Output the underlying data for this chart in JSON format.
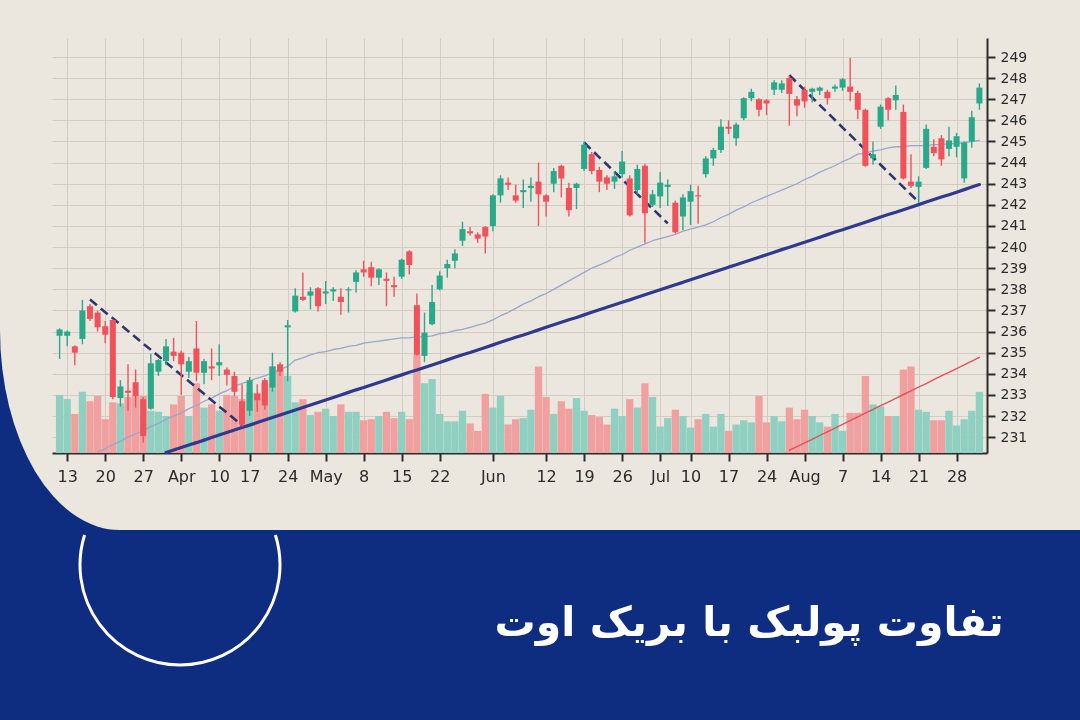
{
  "chart_data": {
    "type": "candlestick",
    "title": "تفاوت پولبک با بریک اوت",
    "categories": [
      null,
      "13",
      null,
      null,
      null,
      null,
      "20",
      null,
      null,
      null,
      null,
      "27",
      null,
      null,
      null,
      null,
      "Apr",
      null,
      null,
      null,
      null,
      "10",
      null,
      null,
      null,
      "17",
      null,
      null,
      null,
      null,
      "24",
      null,
      null,
      null,
      null,
      "May",
      null,
      null,
      null,
      null,
      "8",
      null,
      null,
      null,
      null,
      "15",
      null,
      null,
      null,
      null,
      "22",
      null,
      null,
      null,
      null,
      null,
      null,
      "Jun",
      null,
      null,
      null,
      null,
      null,
      null,
      "12",
      null,
      null,
      null,
      null,
      "19",
      null,
      null,
      null,
      null,
      "26",
      null,
      null,
      null,
      null,
      "Jul",
      null,
      null,
      null,
      "10",
      null,
      null,
      null,
      null,
      "17",
      null,
      null,
      null,
      null,
      "24",
      null,
      null,
      null,
      null,
      "Aug",
      null,
      null,
      null,
      null,
      "7",
      null,
      null,
      null,
      null,
      "14",
      null,
      null,
      null,
      null,
      "21",
      null,
      null,
      null,
      null,
      "28",
      null,
      null,
      null
    ],
    "ohlc": [
      [
        235.8,
        236.15,
        234.7,
        236.1
      ],
      [
        235.8,
        236.05,
        235.3,
        236.0
      ],
      [
        235.3,
        235.35,
        234.4,
        235.0
      ],
      [
        235.65,
        237.5,
        235.4,
        237.0
      ],
      [
        237.2,
        237.3,
        236.5,
        236.6
      ],
      [
        236.9,
        237.0,
        236.0,
        236.2
      ],
      [
        236.25,
        236.5,
        235.45,
        235.85
      ],
      [
        236.55,
        236.6,
        232.8,
        232.9
      ],
      [
        232.85,
        233.7,
        232.45,
        233.4
      ],
      [
        233.2,
        234.45,
        232.25,
        233.1
      ],
      [
        233.6,
        234.2,
        232.4,
        232.95
      ],
      [
        232.8,
        232.9,
        230.75,
        231.05
      ],
      [
        232.35,
        234.95,
        232.3,
        234.5
      ],
      [
        234.1,
        234.7,
        233.9,
        234.65
      ],
      [
        234.6,
        235.65,
        234.4,
        235.3
      ],
      [
        235.05,
        235.7,
        234.6,
        234.85
      ],
      [
        235.0,
        235.1,
        233.0,
        234.45
      ],
      [
        234.1,
        234.8,
        233.8,
        234.6
      ],
      [
        235.2,
        236.5,
        233.65,
        234.05
      ],
      [
        234.05,
        234.7,
        233.5,
        234.6
      ],
      [
        234.35,
        235.2,
        233.7,
        234.25
      ],
      [
        234.4,
        235.4,
        233.9,
        234.55
      ],
      [
        234.2,
        234.3,
        233.45,
        233.95
      ],
      [
        233.9,
        234.1,
        232.95,
        233.15
      ],
      [
        232.7,
        233.5,
        231.5,
        231.6
      ],
      [
        232.25,
        233.85,
        232.0,
        233.7
      ],
      [
        233.05,
        233.5,
        232.2,
        232.75
      ],
      [
        233.7,
        233.8,
        232.3,
        232.5
      ],
      [
        233.35,
        235.0,
        233.15,
        234.35
      ],
      [
        234.45,
        234.55,
        233.9,
        234.1
      ],
      [
        236.2,
        236.55,
        233.65,
        236.3
      ],
      [
        236.95,
        238.05,
        236.9,
        237.7
      ],
      [
        237.65,
        238.8,
        237.45,
        237.5
      ],
      [
        237.7,
        238.1,
        237.05,
        237.9
      ],
      [
        238.05,
        238.1,
        236.95,
        237.2
      ],
      [
        237.8,
        238.4,
        237.3,
        237.9
      ],
      [
        237.9,
        238.1,
        237.45,
        238.0
      ],
      [
        237.65,
        238.05,
        236.8,
        237.4
      ],
      [
        237.95,
        238.1,
        236.9,
        238.0
      ],
      [
        238.35,
        238.9,
        237.85,
        238.8
      ],
      [
        238.95,
        239.35,
        238.6,
        238.8
      ],
      [
        239.05,
        239.3,
        238.15,
        238.55
      ],
      [
        238.55,
        239.0,
        238.2,
        238.95
      ],
      [
        238.5,
        238.8,
        237.2,
        238.4
      ],
      [
        238.2,
        238.6,
        237.65,
        238.1
      ],
      [
        238.6,
        239.45,
        238.5,
        239.4
      ],
      [
        239.8,
        239.85,
        238.7,
        239.15
      ],
      [
        237.25,
        237.8,
        234.85,
        234.9
      ],
      [
        234.85,
        236.9,
        234.55,
        235.95
      ],
      [
        236.35,
        238.2,
        236.3,
        237.4
      ],
      [
        238.0,
        238.85,
        237.95,
        238.65
      ],
      [
        239.0,
        239.4,
        238.55,
        239.2
      ],
      [
        239.35,
        239.9,
        239.0,
        239.7
      ],
      [
        240.3,
        241.2,
        240.05,
        240.85
      ],
      [
        240.75,
        240.95,
        240.55,
        240.65
      ],
      [
        240.6,
        240.7,
        240.2,
        240.4
      ],
      [
        240.95,
        241.0,
        239.7,
        240.5
      ],
      [
        241.0,
        242.5,
        240.75,
        242.45
      ],
      [
        242.45,
        243.4,
        242.1,
        243.25
      ],
      [
        243.05,
        243.3,
        242.7,
        242.95
      ],
      [
        242.45,
        242.95,
        242.1,
        242.2
      ],
      [
        242.6,
        243.2,
        241.85,
        242.7
      ],
      [
        242.8,
        243.3,
        242.15,
        242.9
      ],
      [
        243.1,
        244.0,
        241.0,
        242.5
      ],
      [
        242.45,
        242.5,
        241.45,
        242.15
      ],
      [
        243.0,
        243.75,
        242.6,
        243.6
      ],
      [
        243.85,
        243.9,
        242.35,
        243.25
      ],
      [
        242.8,
        243.05,
        241.45,
        241.75
      ],
      [
        242.8,
        243.05,
        241.8,
        243.0
      ],
      [
        243.7,
        245.0,
        243.6,
        244.85
      ],
      [
        244.4,
        244.5,
        243.45,
        243.6
      ],
      [
        243.65,
        243.8,
        242.6,
        243.1
      ],
      [
        243.3,
        243.4,
        242.7,
        243.0
      ],
      [
        243.1,
        243.6,
        242.75,
        243.35
      ],
      [
        243.45,
        244.55,
        243.3,
        244.05
      ],
      [
        243.25,
        243.4,
        241.45,
        241.5
      ],
      [
        242.7,
        243.9,
        242.5,
        243.7
      ],
      [
        243.85,
        243.95,
        240.2,
        241.6
      ],
      [
        242.0,
        242.7,
        241.9,
        242.5
      ],
      [
        242.4,
        243.55,
        241.85,
        243.05
      ],
      [
        242.85,
        243.2,
        241.95,
        242.95
      ],
      [
        242.1,
        242.2,
        240.65,
        240.7
      ],
      [
        241.45,
        242.5,
        240.8,
        242.35
      ],
      [
        242.15,
        242.95,
        241.05,
        242.65
      ],
      [
        242.45,
        242.9,
        241.1,
        242.4
      ],
      [
        243.45,
        244.3,
        243.3,
        244.2
      ],
      [
        244.2,
        244.7,
        243.85,
        244.6
      ],
      [
        244.6,
        246.05,
        244.45,
        245.7
      ],
      [
        245.7,
        246.0,
        245.35,
        245.6
      ],
      [
        245.15,
        245.9,
        244.8,
        245.8
      ],
      [
        246.1,
        247.1,
        246.0,
        247.05
      ],
      [
        247.05,
        247.5,
        246.9,
        247.35
      ],
      [
        247.0,
        247.05,
        246.2,
        246.5
      ],
      [
        246.95,
        247.0,
        246.25,
        246.8
      ],
      [
        247.45,
        247.9,
        247.2,
        247.8
      ],
      [
        247.45,
        247.9,
        247.3,
        247.75
      ],
      [
        248.0,
        248.1,
        245.75,
        247.25
      ],
      [
        247.0,
        247.15,
        246.2,
        246.7
      ],
      [
        247.45,
        247.6,
        246.6,
        246.9
      ],
      [
        247.35,
        247.55,
        246.85,
        247.5
      ],
      [
        247.4,
        247.6,
        247.2,
        247.55
      ],
      [
        247.35,
        247.45,
        246.75,
        247.05
      ],
      [
        247.5,
        247.7,
        247.35,
        247.6
      ],
      [
        247.55,
        248.0,
        247.4,
        247.95
      ],
      [
        247.6,
        248.95,
        246.9,
        247.35
      ],
      [
        247.3,
        247.4,
        246.05,
        246.5
      ],
      [
        246.5,
        246.55,
        243.8,
        243.85
      ],
      [
        244.2,
        245.0,
        243.9,
        244.4
      ],
      [
        245.7,
        246.75,
        245.6,
        246.65
      ],
      [
        247.05,
        247.1,
        246.0,
        246.5
      ],
      [
        246.95,
        247.65,
        246.5,
        247.2
      ],
      [
        246.4,
        246.75,
        243.2,
        243.25
      ],
      [
        243.1,
        244.4,
        242.8,
        242.9
      ],
      [
        242.85,
        243.35,
        242.1,
        243.1
      ],
      [
        243.75,
        245.8,
        243.7,
        245.6
      ],
      [
        244.75,
        245.1,
        244.3,
        244.45
      ],
      [
        245.15,
        245.3,
        243.85,
        244.15
      ],
      [
        244.65,
        245.7,
        244.3,
        245.05
      ],
      [
        244.75,
        245.4,
        244.25,
        245.25
      ],
      [
        243.25,
        245.0,
        243.05,
        244.95
      ],
      [
        245.0,
        246.45,
        244.7,
        246.15
      ],
      [
        246.8,
        247.75,
        246.5,
        247.55
      ]
    ],
    "colors": [
      "#2aa88a",
      "#2aa88a",
      "#ef525b",
      "#2aa88a",
      "#ef525b",
      "#ef525b",
      "#ef525b",
      "#ef525b",
      "#2aa88a",
      "#ef525b",
      "#ef525b",
      "#ef525b",
      "#2aa88a",
      "#2aa88a",
      "#2aa88a",
      "#ef525b",
      "#ef525b",
      "#2aa88a",
      "#ef525b",
      "#2aa88a",
      "#ef525b",
      "#2aa88a",
      "#ef525b",
      "#ef525b",
      "#ef525b",
      "#2aa88a",
      "#ef525b",
      "#ef525b",
      "#2aa88a",
      "#ef525b",
      "#2aa88a",
      "#2aa88a",
      "#ef525b",
      "#2aa88a",
      "#ef525b",
      "#2aa88a",
      "#2aa88a",
      "#ef525b",
      "#2aa88a",
      "#2aa88a",
      "#ef525b",
      "#ef525b",
      "#2aa88a",
      "#ef525b",
      "#ef525b",
      "#2aa88a",
      "#ef525b",
      "#ef525b",
      "#2aa88a",
      "#2aa88a",
      "#2aa88a",
      "#2aa88a",
      "#2aa88a",
      "#2aa88a",
      "#ef525b",
      "#ef525b",
      "#ef525b",
      "#2aa88a",
      "#2aa88a",
      "#ef525b",
      "#ef525b",
      "#2aa88a",
      "#2aa88a",
      "#ef525b",
      "#ef525b",
      "#2aa88a",
      "#ef525b",
      "#ef525b",
      "#2aa88a",
      "#2aa88a",
      "#ef525b",
      "#ef525b",
      "#ef525b",
      "#2aa88a",
      "#2aa88a",
      "#ef525b",
      "#2aa88a",
      "#ef525b",
      "#2aa88a",
      "#2aa88a",
      "#2aa88a",
      "#ef525b",
      "#2aa88a",
      "#2aa88a",
      "#ef525b",
      "#2aa88a",
      "#2aa88a",
      "#2aa88a",
      "#ef525b",
      "#2aa88a",
      "#2aa88a",
      "#2aa88a",
      "#ef525b",
      "#ef525b",
      "#2aa88a",
      "#2aa88a",
      "#ef525b",
      "#ef525b",
      "#ef525b",
      "#2aa88a",
      "#2aa88a",
      "#ef525b",
      "#2aa88a",
      "#2aa88a",
      "#ef525b",
      "#ef525b",
      "#ef525b",
      "#2aa88a",
      "#2aa88a",
      "#ef525b",
      "#2aa88a",
      "#ef525b",
      "#ef525b",
      "#2aa88a",
      "#2aa88a",
      "#ef525b",
      "#ef525b",
      "#2aa88a",
      "#2aa88a",
      "#2aa88a",
      "#2aa88a",
      "#2aa88a"
    ],
    "series": [
      {
        "type": "bar",
        "values": [
          233.0,
          232.8,
          232.1,
          233.15,
          232.7,
          232.95,
          231.85,
          232.65,
          232.6,
          232.9,
          232.95,
          232.95,
          232.25,
          232.2,
          232.0,
          232.55,
          232.95,
          232.0,
          233.55,
          232.4,
          232.55,
          232.25,
          233.0,
          232.95,
          232.8,
          233.1,
          233.1,
          233.55,
          234.35,
          234.2,
          233.9,
          232.65,
          232.8,
          232.05,
          232.2,
          232.35,
          232.0,
          232.55,
          232.2,
          232.2,
          231.8,
          231.85,
          232.0,
          232.2,
          231.9,
          232.2,
          231.85,
          234.9,
          233.55,
          233.75,
          232.1,
          231.75,
          231.75,
          232.25,
          231.65,
          231.3,
          233.05,
          232.4,
          232.95,
          231.6,
          231.85,
          231.9,
          232.3,
          234.35,
          232.9,
          232.1,
          232.7,
          232.35,
          232.85,
          232.25,
          232.05,
          231.95,
          231.6,
          232.35,
          232.0,
          232.8,
          232.4,
          233.55,
          232.9,
          231.5,
          231.9,
          232.3,
          232.0,
          231.45,
          231.85,
          232.1,
          231.5,
          232.1,
          231.3,
          231.6,
          231.8,
          231.7,
          232.95,
          231.7,
          232.0,
          231.75,
          232.4,
          231.85,
          232.3,
          232.0,
          231.7,
          231.5,
          232.1,
          231.3,
          232.15,
          232.15,
          233.9,
          232.55,
          232.45,
          232.0,
          232.0,
          234.2,
          234.35,
          232.3,
          232.2,
          231.8,
          231.8,
          232.25,
          231.55,
          231.85,
          232.25,
          233.15
        ],
        "colors": [
          "#8fd0c0",
          "#8fd0c0",
          "#f1a0a0",
          "#8fd0c0",
          "#f1a0a0",
          "#f1a0a0",
          "#f1a0a0",
          "#f1a0a0",
          "#8fd0c0",
          "#f1a0a0",
          "#f1a0a0",
          "#f1a0a0",
          "#8fd0c0",
          "#8fd0c0",
          "#8fd0c0",
          "#f1a0a0",
          "#f1a0a0",
          "#8fd0c0",
          "#f1a0a0",
          "#8fd0c0",
          "#f1a0a0",
          "#8fd0c0",
          "#f1a0a0",
          "#f1a0a0",
          "#f1a0a0",
          "#8fd0c0",
          "#f1a0a0",
          "#f1a0a0",
          "#8fd0c0",
          "#f1a0a0",
          "#8fd0c0",
          "#8fd0c0",
          "#f1a0a0",
          "#8fd0c0",
          "#f1a0a0",
          "#8fd0c0",
          "#8fd0c0",
          "#f1a0a0",
          "#8fd0c0",
          "#8fd0c0",
          "#f1a0a0",
          "#f1a0a0",
          "#8fd0c0",
          "#f1a0a0",
          "#f1a0a0",
          "#8fd0c0",
          "#f1a0a0",
          "#f1a0a0",
          "#8fd0c0",
          "#8fd0c0",
          "#8fd0c0",
          "#8fd0c0",
          "#8fd0c0",
          "#8fd0c0",
          "#f1a0a0",
          "#f1a0a0",
          "#f1a0a0",
          "#8fd0c0",
          "#8fd0c0",
          "#f1a0a0",
          "#f1a0a0",
          "#8fd0c0",
          "#8fd0c0",
          "#f1a0a0",
          "#f1a0a0",
          "#8fd0c0",
          "#f1a0a0",
          "#f1a0a0",
          "#8fd0c0",
          "#8fd0c0",
          "#f1a0a0",
          "#f1a0a0",
          "#f1a0a0",
          "#8fd0c0",
          "#8fd0c0",
          "#f1a0a0",
          "#8fd0c0",
          "#f1a0a0",
          "#8fd0c0",
          "#8fd0c0",
          "#8fd0c0",
          "#f1a0a0",
          "#8fd0c0",
          "#8fd0c0",
          "#f1a0a0",
          "#8fd0c0",
          "#8fd0c0",
          "#8fd0c0",
          "#f1a0a0",
          "#8fd0c0",
          "#8fd0c0",
          "#8fd0c0",
          "#f1a0a0",
          "#f1a0a0",
          "#8fd0c0",
          "#8fd0c0",
          "#f1a0a0",
          "#f1a0a0",
          "#f1a0a0",
          "#8fd0c0",
          "#8fd0c0",
          "#f1a0a0",
          "#8fd0c0",
          "#8fd0c0",
          "#f1a0a0",
          "#f1a0a0",
          "#f1a0a0",
          "#8fd0c0",
          "#8fd0c0",
          "#f1a0a0",
          "#8fd0c0",
          "#f1a0a0",
          "#f1a0a0",
          "#8fd0c0",
          "#8fd0c0",
          "#f1a0a0",
          "#f1a0a0",
          "#8fd0c0",
          "#8fd0c0",
          "#8fd0c0",
          "#8fd0c0",
          "#8fd0c0"
        ]
      },
      {
        "type": "line",
        "color": "#9aa6cb",
        "values": [
          null,
          null,
          null,
          null,
          null,
          230.3,
          230.45,
          230.65,
          230.8,
          231.0,
          231.15,
          231.3,
          231.5,
          231.65,
          231.85,
          232.0,
          232.15,
          232.35,
          232.5,
          232.7,
          232.85,
          233.05,
          233.2,
          233.4,
          233.55,
          233.65,
          233.8,
          233.9,
          234.05,
          234.2,
          234.35,
          234.65,
          234.75,
          234.9,
          235.0,
          235.05,
          235.15,
          235.2,
          235.3,
          235.35,
          235.45,
          235.5,
          235.55,
          235.6,
          235.65,
          235.7,
          235.7,
          235.75,
          235.75,
          235.8,
          235.9,
          235.95,
          236.05,
          236.1,
          236.2,
          236.3,
          236.4,
          236.55,
          236.75,
          236.9,
          237.1,
          237.3,
          237.45,
          237.65,
          237.8,
          238.0,
          238.2,
          238.4,
          238.6,
          238.8,
          239.0,
          239.15,
          239.3,
          239.5,
          239.65,
          239.85,
          240.0,
          240.15,
          240.3,
          240.4,
          240.5,
          240.6,
          240.75,
          240.85,
          240.95,
          241.05,
          241.2,
          241.4,
          241.55,
          241.75,
          241.9,
          242.1,
          242.25,
          242.4,
          242.55,
          242.7,
          242.85,
          243.0,
          243.2,
          243.35,
          243.55,
          243.7,
          243.85,
          244.05,
          244.2,
          244.4,
          244.45,
          244.55,
          244.6,
          244.7,
          244.75,
          244.75,
          244.8,
          244.8,
          244.8,
          244.85,
          244.85,
          244.9,
          244.9,
          244.95,
          245.0,
          245.05
        ]
      },
      {
        "type": "line",
        "color": "#2f3a8f",
        "values": [
          null,
          null,
          null,
          null,
          null,
          null,
          null,
          null,
          null,
          null,
          null,
          null,
          null,
          null,
          230.27,
          230.39,
          230.51,
          230.63,
          230.74,
          230.86,
          230.98,
          231.1,
          231.22,
          231.34,
          231.46,
          231.57,
          231.69,
          231.81,
          231.93,
          232.05,
          232.17,
          232.29,
          232.4,
          232.52,
          232.64,
          232.76,
          232.88,
          233.0,
          233.12,
          233.24,
          233.35,
          233.47,
          233.59,
          233.71,
          233.83,
          233.95,
          234.07,
          234.18,
          234.3,
          234.42,
          234.54,
          234.66,
          234.78,
          234.9,
          235.01,
          235.13,
          235.25,
          235.37,
          235.49,
          235.61,
          235.73,
          235.84,
          235.96,
          236.08,
          236.2,
          236.32,
          236.44,
          236.56,
          236.67,
          236.79,
          236.91,
          237.03,
          237.15,
          237.27,
          237.39,
          237.5,
          237.62,
          237.74,
          237.86,
          237.98,
          238.1,
          238.22,
          238.33,
          238.45,
          238.57,
          238.69,
          238.81,
          238.93,
          239.05,
          239.16,
          239.28,
          239.4,
          239.52,
          239.64,
          239.76,
          239.88,
          239.99,
          240.11,
          240.23,
          240.35,
          240.47,
          240.59,
          240.71,
          240.82,
          240.94,
          241.06,
          241.18,
          241.3,
          241.42,
          241.54,
          241.65,
          241.77,
          241.89,
          242.01,
          242.13,
          242.25,
          242.37,
          242.48,
          242.6,
          242.72,
          242.84,
          242.96
        ]
      },
      {
        "type": "line",
        "color": "#e0535b",
        "values": [
          null,
          null,
          null,
          null,
          null,
          null,
          null,
          null,
          null,
          null,
          null,
          null,
          null,
          null,
          null,
          null,
          null,
          null,
          null,
          null,
          null,
          null,
          null,
          null,
          null,
          null,
          null,
          null,
          null,
          null,
          null,
          null,
          null,
          null,
          null,
          null,
          null,
          null,
          null,
          null,
          null,
          null,
          null,
          null,
          null,
          null,
          null,
          null,
          null,
          null,
          null,
          null,
          null,
          null,
          null,
          null,
          null,
          null,
          null,
          null,
          null,
          null,
          null,
          null,
          null,
          null,
          null,
          null,
          null,
          null,
          null,
          null,
          null,
          null,
          null,
          null,
          null,
          null,
          null,
          null,
          null,
          null,
          null,
          null,
          null,
          null,
          null,
          null,
          null,
          null,
          null,
          null,
          null,
          null,
          null,
          null,
          230.38,
          230.55,
          230.73,
          230.9,
          231.08,
          231.25,
          231.43,
          231.61,
          231.78,
          231.96,
          232.14,
          232.31,
          232.49,
          232.66,
          232.84,
          233.02,
          233.19,
          233.37,
          233.54,
          233.72,
          233.9,
          234.07,
          234.25,
          234.42,
          234.6,
          234.78
        ]
      },
      {
        "type": "line",
        "color": "#2f3570",
        "line_style": "dashed",
        "values": [
          null,
          null,
          null,
          null,
          237.52,
          237.22,
          236.92,
          236.63,
          236.33,
          236.03,
          235.73,
          235.43,
          235.14,
          234.84,
          234.54,
          234.24,
          233.94,
          233.65,
          233.35,
          233.05,
          232.75,
          232.45,
          232.16,
          231.86,
          231.56,
          null,
          null,
          null,
          null,
          null,
          null,
          null,
          null,
          null,
          null,
          null,
          null,
          null,
          null,
          null,
          null,
          null,
          null,
          null,
          null,
          null,
          null,
          null,
          null,
          null,
          null,
          null,
          null,
          null,
          null,
          null,
          null,
          null,
          null,
          null,
          null,
          null,
          null,
          null,
          null,
          null,
          null,
          null,
          null,
          null,
          null,
          null,
          null,
          null,
          null,
          null,
          null,
          null,
          null,
          null,
          null,
          null,
          null,
          null,
          null,
          null,
          null,
          null,
          null,
          null,
          null,
          null,
          null,
          null,
          null,
          null,
          null,
          null,
          null,
          null,
          null,
          null,
          null,
          null,
          null,
          null,
          null,
          null,
          null,
          null,
          null,
          null,
          null,
          null,
          null,
          null,
          null,
          null,
          null,
          null,
          null,
          null
        ]
      },
      {
        "type": "line",
        "color": "#2f3570",
        "line_style": "dashed",
        "values": [
          null,
          null,
          null,
          null,
          null,
          null,
          null,
          null,
          null,
          null,
          null,
          null,
          null,
          null,
          null,
          null,
          null,
          null,
          null,
          null,
          null,
          null,
          null,
          null,
          null,
          null,
          null,
          null,
          null,
          null,
          null,
          null,
          null,
          null,
          null,
          null,
          null,
          null,
          null,
          null,
          null,
          null,
          null,
          null,
          null,
          null,
          null,
          null,
          null,
          null,
          null,
          null,
          null,
          null,
          null,
          null,
          null,
          null,
          null,
          null,
          null,
          null,
          null,
          null,
          null,
          null,
          null,
          null,
          null,
          244.95,
          244.6,
          244.25,
          243.91,
          243.56,
          243.21,
          242.86,
          242.51,
          242.16,
          241.82,
          241.47,
          241.12,
          null,
          null,
          null,
          null,
          null,
          null,
          null,
          null,
          null,
          null,
          null,
          null,
          null,
          null,
          null,
          null,
          null,
          null,
          null,
          null,
          null,
          null,
          null,
          null,
          null,
          null,
          null,
          null,
          null,
          null,
          null,
          null,
          null,
          null,
          null,
          null,
          null,
          null,
          null,
          null,
          null
        ]
      },
      {
        "type": "line",
        "color": "#2f3570",
        "line_style": "dashed",
        "values": [
          null,
          null,
          null,
          null,
          null,
          null,
          null,
          null,
          null,
          null,
          null,
          null,
          null,
          null,
          null,
          null,
          null,
          null,
          null,
          null,
          null,
          null,
          null,
          null,
          null,
          null,
          null,
          null,
          null,
          null,
          null,
          null,
          null,
          null,
          null,
          null,
          null,
          null,
          null,
          null,
          null,
          null,
          null,
          null,
          null,
          null,
          null,
          null,
          null,
          null,
          null,
          null,
          null,
          null,
          null,
          null,
          null,
          null,
          null,
          null,
          null,
          null,
          null,
          null,
          null,
          null,
          null,
          null,
          null,
          null,
          null,
          null,
          null,
          null,
          null,
          null,
          null,
          null,
          null,
          null,
          null,
          null,
          null,
          null,
          null,
          null,
          null,
          null,
          null,
          null,
          null,
          null,
          null,
          null,
          null,
          null,
          248.14,
          247.78,
          247.43,
          247.08,
          246.72,
          246.37,
          246.02,
          245.66,
          245.31,
          244.96,
          244.6,
          244.25,
          243.9,
          243.54,
          243.19,
          242.84,
          242.49,
          242.13,
          null,
          null,
          null,
          null,
          null,
          null,
          null,
          null
        ]
      }
    ],
    "ylim": [
      230.25,
      249.9
    ],
    "yticks": [
      231,
      232,
      233,
      234,
      235,
      236,
      237,
      238,
      239,
      240,
      241,
      242,
      243,
      244,
      245,
      246,
      247,
      248,
      249
    ],
    "grid": true
  }
}
